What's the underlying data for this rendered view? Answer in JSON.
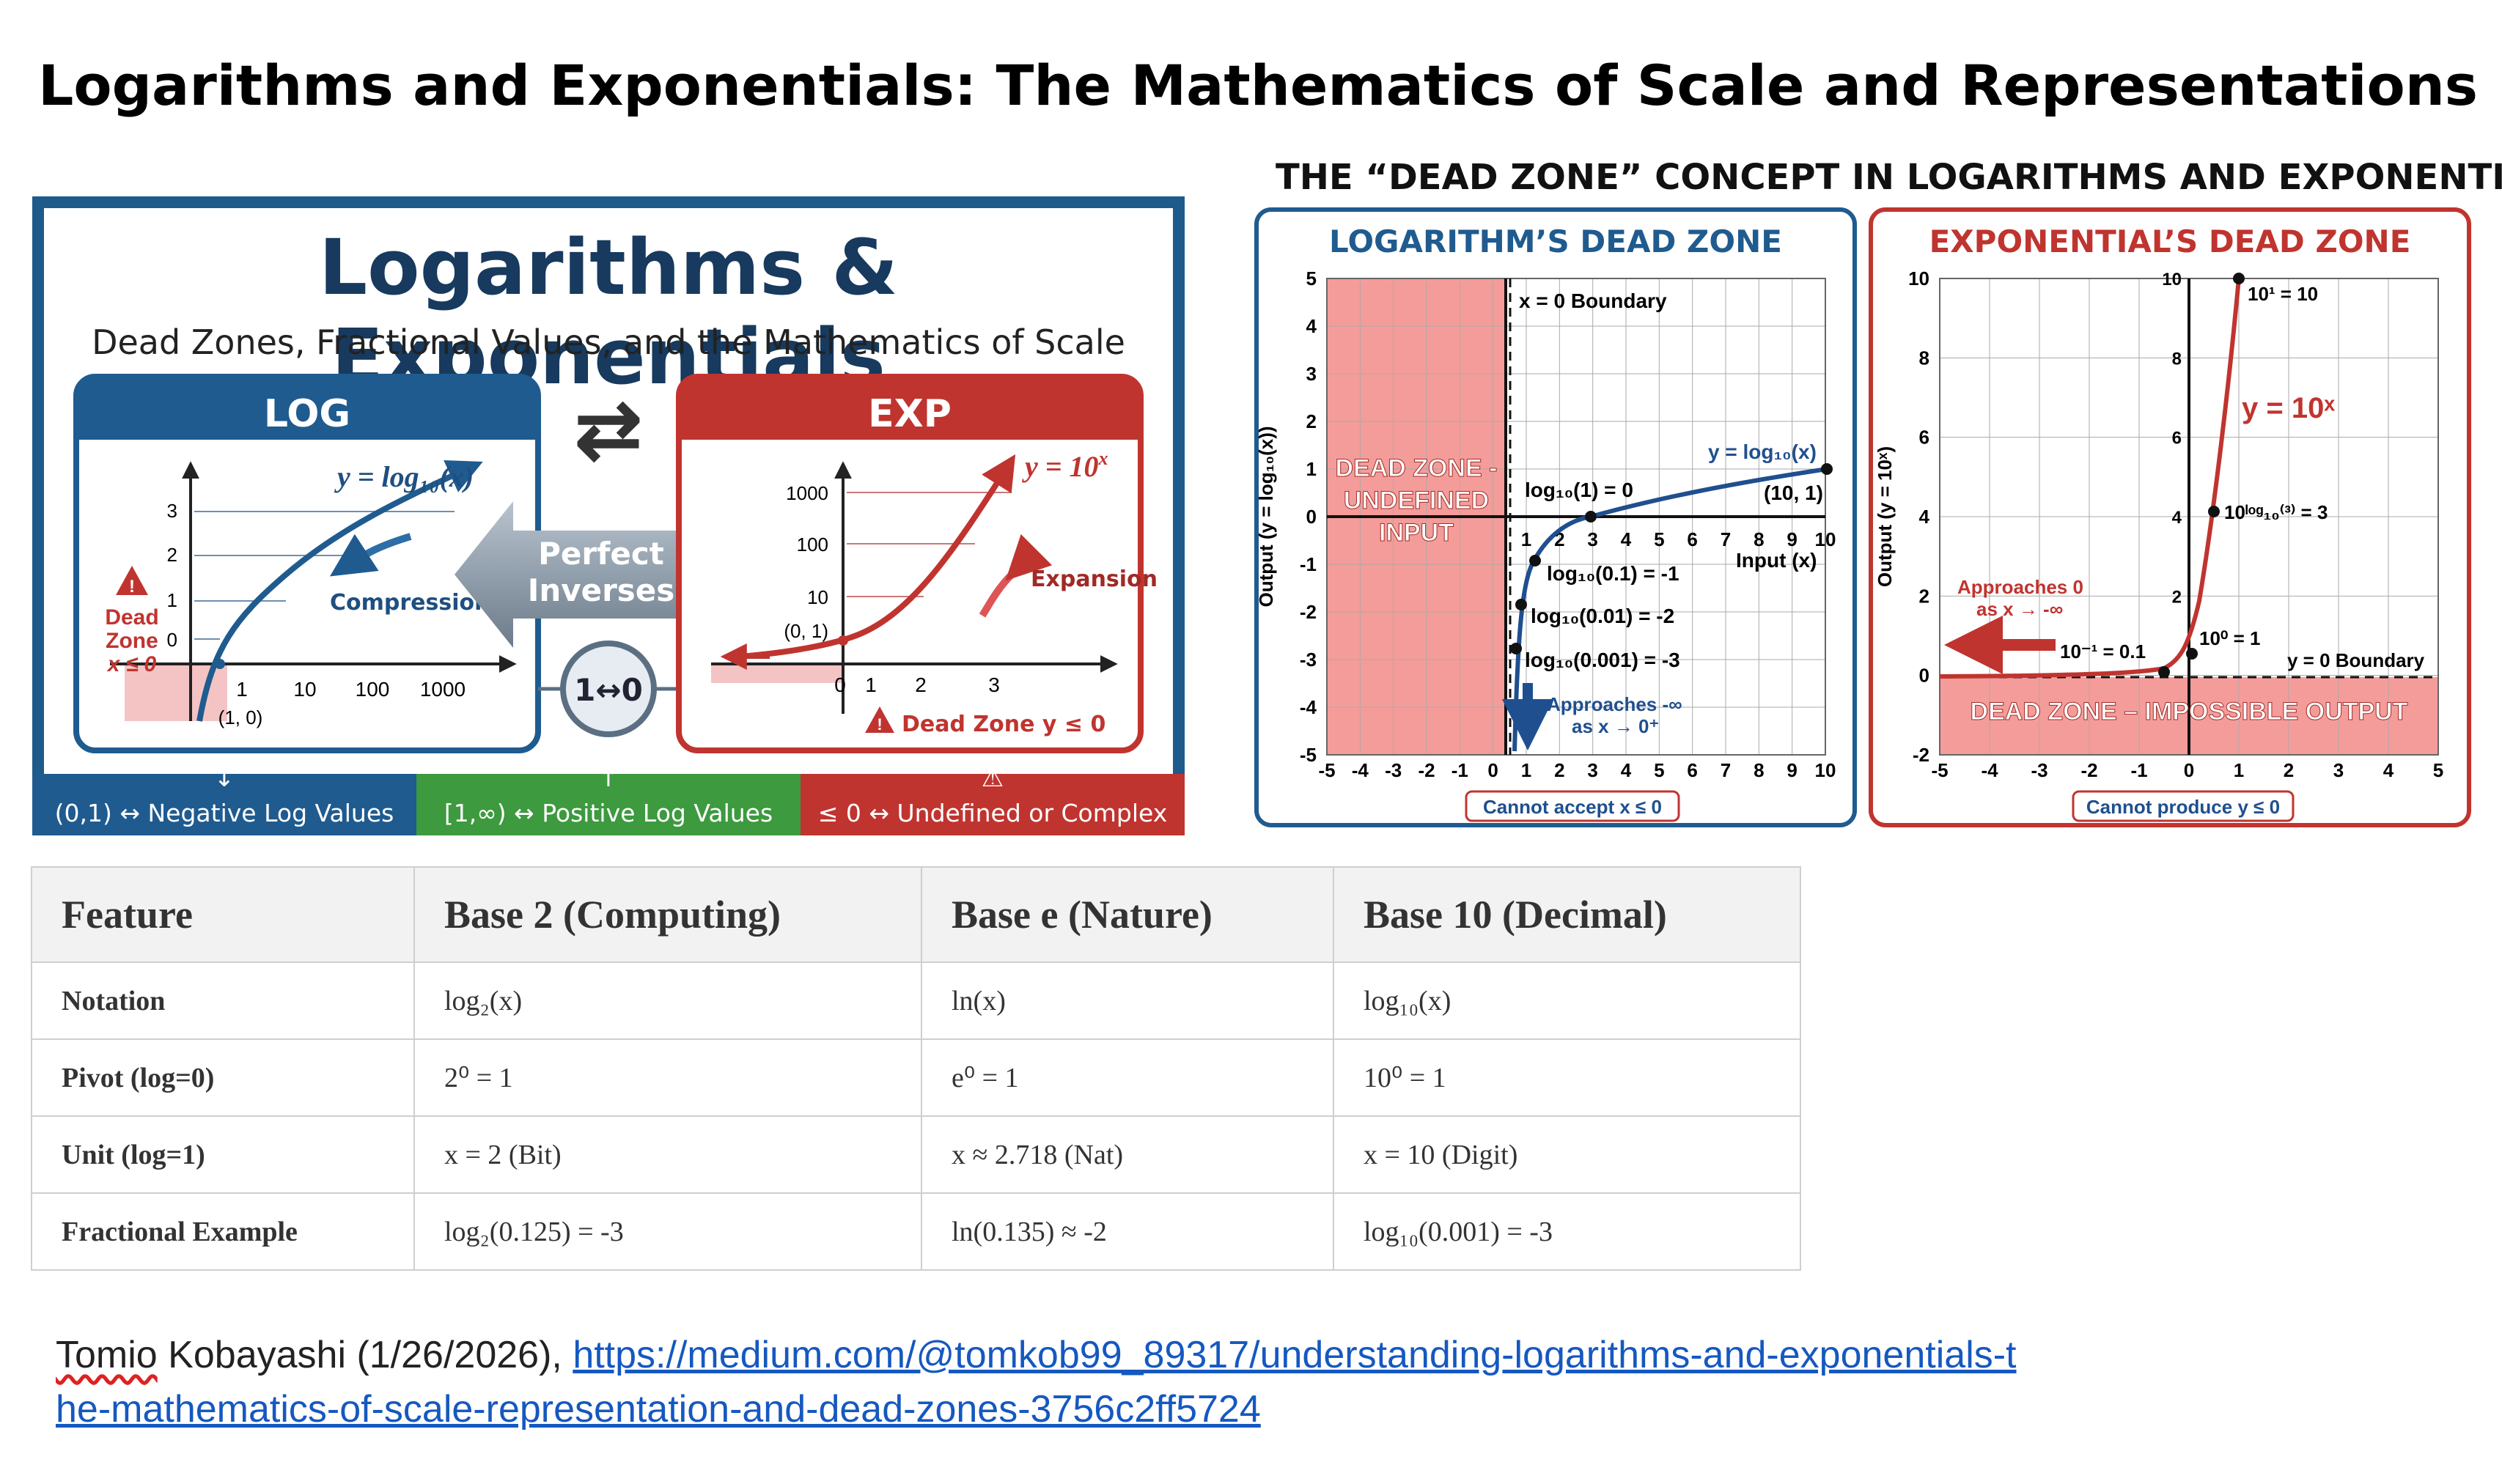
{
  "page": {
    "title": "Logarithms and Exponentials: The Mathematics of Scale and Representations"
  },
  "infographic": {
    "title": "Logarithms & Exponentials",
    "subtitle": "Dead Zones, Fractional Values, and the Mathematics of Scale",
    "log_panel": {
      "header": "LOG",
      "equation": "y = log₁₀(x)",
      "y_ticks": [
        "3",
        "2",
        "1",
        "0"
      ],
      "x_ticks": [
        "1",
        "10",
        "100",
        "1000"
      ],
      "point_label": "(1, 0)",
      "compression_label": "Compression",
      "dead_zone_label_1": "Dead",
      "dead_zone_label_2": "Zone",
      "dead_zone_label_3": "x ≤ 0"
    },
    "center": {
      "swap_icon": "⇄",
      "inverses_line_1": "Perfect",
      "inverses_line_2": "Inverses",
      "pivot_label": "1↔0"
    },
    "exp_panel": {
      "header": "EXP",
      "equation": "y = 10",
      "equation_sup": "x",
      "y_ticks": [
        "1000",
        "100",
        "10",
        "(0, 1)"
      ],
      "x_ticks": [
        "0",
        "1",
        "2",
        "3"
      ],
      "expansion_label": "Expansion",
      "dead_zone_label": "Dead Zone y ≤ 0"
    },
    "footer": [
      {
        "label": "(0,1) ↔ Negative Log Values",
        "icon": "arrow-down",
        "color": "#1f5b8f"
      },
      {
        "label": "[1,∞) ↔ Positive Log Values",
        "icon": "arrow-up",
        "color": "#3d9a3f"
      },
      {
        "label": "≤ 0 ↔ Undefined or Complex",
        "icon": "warning",
        "color": "#c0342f"
      }
    ]
  },
  "dead_zone": {
    "title": "THE “DEAD ZONE” CONCEPT IN LOGARITHMS AND EXPONENTIALS",
    "log": {
      "header": "LOGARITHM’S DEAD ZONE",
      "y_axis_label": "Output (y = log₁₀(x))",
      "x_axis_label": "Input (x)",
      "y_ticks": [
        "5",
        "4",
        "3",
        "2",
        "1",
        "0",
        "-1",
        "-2",
        "-3",
        "-4",
        "-5"
      ],
      "x_ticks": [
        "-5",
        "-4",
        "-3",
        "-2",
        "-1",
        "0",
        "1",
        "2",
        "3",
        "4",
        "5",
        "6",
        "7",
        "8",
        "9",
        "10"
      ],
      "boundary_label": "x = 0 Boundary",
      "dead_zone_line_1": "DEAD ZONE -",
      "dead_zone_line_2": "UNDEFINED",
      "dead_zone_line_3": "INPUT",
      "curve_label": "y = log₁₀(x)",
      "point_10_1": "(10, 1)",
      "ann_1": "log₁₀(1) = 0",
      "ann_2": "log₁₀(0.1) = -1",
      "ann_3": "log₁₀(0.01) = -2",
      "ann_4": "log₁₀(0.001) = -3",
      "approach_1": "Approaches -∞",
      "approach_2": "as x → 0⁺",
      "footer_label": "Cannot accept x ≤ 0"
    },
    "exp": {
      "header": "EXPONENTIAL’S DEAD ZONE",
      "y_axis_label": "Output (y = 10ˣ)",
      "y_ticks": [
        "10",
        "8",
        "6",
        "4",
        "2",
        "0",
        "-2"
      ],
      "x_ticks": [
        "-5",
        "-4",
        "-3",
        "-2",
        "-1",
        "0",
        "1",
        "2",
        "3",
        "4",
        "5"
      ],
      "inner_y_ticks": [
        "10",
        "8",
        "6",
        "4",
        "2"
      ],
      "curve_label": "y = 10ˣ",
      "ann_top": "10¹ = 10",
      "ann_mid": "10ˡᵒᵍ₁₀⁽³⁾ = 3",
      "ann_1": "10⁰ = 1",
      "ann_01": "10⁻¹ = 0.1",
      "approach_1": "Approaches 0",
      "approach_2": "as x → -∞",
      "boundary_label": "y = 0 Boundary",
      "dead_zone_label": "DEAD ZONE – IMPOSSIBLE OUTPUT",
      "footer_label": "Cannot produce y ≤ 0"
    }
  },
  "table": {
    "headers": [
      "Feature",
      "Base 2 (Computing)",
      "Base e (Nature)",
      "Base 10 (Decimal)"
    ],
    "rows": [
      [
        "Notation",
        "log₂(x)",
        "ln(x)",
        "log₁₀(x)"
      ],
      [
        "Pivot (log=0)",
        "2⁰ = 1",
        "e⁰ = 1",
        "10⁰ = 1"
      ],
      [
        "Unit (log=1)",
        "x = 2 (Bit)",
        "x ≈ 2.718 (Nat)",
        "x = 10 (Digit)"
      ],
      [
        "Fractional Example",
        "log₂(0.125) = -3",
        "ln(0.135) ≈ -2",
        "log₁₀(0.001) = -3"
      ]
    ]
  },
  "citation": {
    "author_first": "Tomio",
    "author_rest": " Kobayashi (1/26/2026), ",
    "link": "https://medium.com/@tomkob99_89317/understanding-logarithms-and-exponentials-the-mathematics-of-scale-representation-and-dead-zones-3756c2ff5724"
  }
}
